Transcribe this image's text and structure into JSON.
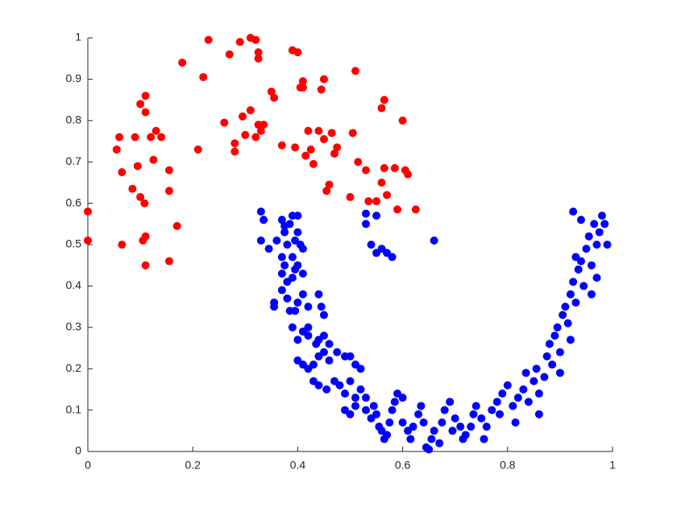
{
  "chart_data": {
    "type": "scatter",
    "xlim": [
      0,
      1
    ],
    "ylim": [
      0,
      1
    ],
    "xticks": [
      0,
      0.2,
      0.4,
      0.6,
      0.8,
      1
    ],
    "yticks": [
      0,
      0.1,
      0.2,
      0.3,
      0.4,
      0.5,
      0.6,
      0.7,
      0.8,
      0.9,
      1
    ],
    "grid": false,
    "series": [
      {
        "color": "#ff0000",
        "x": [
          0,
          0,
          0.06,
          0.055,
          0.09,
          0.065,
          0.065,
          0.085,
          0.095,
          0.1,
          0.11,
          0.11,
          0.1,
          0.108,
          0.11,
          0.105,
          0.11,
          0.12,
          0.13,
          0.125,
          0.14,
          0.155,
          0.155,
          0.17,
          0.155,
          0.18,
          0.21,
          0.22,
          0.23,
          0.26,
          0.27,
          0.28,
          0.28,
          0.29,
          0.295,
          0.3,
          0.31,
          0.31,
          0.32,
          0.32,
          0.325,
          0.325,
          0.325,
          0.33,
          0.335,
          0.35,
          0.355,
          0.37,
          0.39,
          0.395,
          0.4,
          0.405,
          0.41,
          0.41,
          0.415,
          0.42,
          0.425,
          0.43,
          0.44,
          0.445,
          0.45,
          0.45,
          0.455,
          0.46,
          0.465,
          0.47,
          0.475,
          0.5,
          0.505,
          0.51,
          0.515,
          0.53,
          0.535,
          0.55,
          0.56,
          0.565,
          0.56,
          0.565,
          0.57,
          0.59,
          0.6,
          0.605,
          0.61,
          0.625,
          0.585
        ],
        "values": [
          0.58,
          0.51,
          0.76,
          0.73,
          0.76,
          0.675,
          0.5,
          0.635,
          0.69,
          0.84,
          0.86,
          0.82,
          0.615,
          0.6,
          0.52,
          0.51,
          0.45,
          0.76,
          0.775,
          0.705,
          0.76,
          0.68,
          0.63,
          0.545,
          0.46,
          0.94,
          0.73,
          0.905,
          0.995,
          0.795,
          0.96,
          0.745,
          0.725,
          0.99,
          0.81,
          0.765,
          1,
          0.825,
          0.76,
          0.995,
          0.965,
          0.95,
          0.79,
          0.775,
          0.79,
          0.87,
          0.855,
          0.74,
          0.97,
          0.735,
          0.965,
          0.88,
          0.895,
          0.88,
          0.715,
          0.775,
          0.73,
          0.695,
          0.775,
          0.875,
          0.9,
          0.755,
          0.63,
          0.645,
          0.77,
          0.72,
          0.735,
          0.615,
          0.77,
          0.92,
          0.7,
          0.68,
          0.605,
          0.605,
          0.83,
          0.85,
          0.65,
          0.685,
          0.62,
          0.585,
          0.8,
          0.68,
          0.67,
          0.585,
          0.685
        ]
      },
      {
        "color": "#0000ff",
        "x": [
          0.33,
          0.335,
          0.33,
          0.345,
          0.36,
          0.37,
          0.375,
          0.375,
          0.38,
          0.385,
          0.39,
          0.395,
          0.4,
          0.4,
          0.405,
          0.41,
          0.37,
          0.375,
          0.39,
          0.395,
          0.4,
          0.41,
          0.37,
          0.38,
          0.39,
          0.355,
          0.355,
          0.37,
          0.38,
          0.385,
          0.395,
          0.4,
          0.41,
          0.42,
          0.44,
          0.445,
          0.45,
          0.39,
          0.4,
          0.41,
          0.42,
          0.42,
          0.435,
          0.44,
          0.45,
          0.46,
          0.4,
          0.41,
          0.42,
          0.43,
          0.44,
          0.45,
          0.46,
          0.475,
          0.49,
          0.5,
          0.51,
          0.52,
          0.43,
          0.44,
          0.455,
          0.47,
          0.48,
          0.49,
          0.5,
          0.51,
          0.52,
          0.53,
          0.49,
          0.5,
          0.51,
          0.53,
          0.54,
          0.545,
          0.55,
          0.555,
          0.56,
          0.565,
          0.57,
          0.575,
          0.58,
          0.585,
          0.59,
          0.6,
          0.6,
          0.61,
          0.615,
          0.62,
          0.63,
          0.635,
          0.64,
          0.645,
          0.65,
          0.655,
          0.66,
          0.67,
          0.675,
          0.68,
          0.69,
          0.695,
          0.7,
          0.71,
          0.715,
          0.72,
          0.73,
          0.735,
          0.74,
          0.75,
          0.755,
          0.76,
          0.77,
          0.78,
          0.785,
          0.79,
          0.8,
          0.81,
          0.815,
          0.82,
          0.83,
          0.835,
          0.84,
          0.85,
          0.855,
          0.86,
          0.87,
          0.875,
          0.88,
          0.885,
          0.89,
          0.895,
          0.9,
          0.905,
          0.91,
          0.915,
          0.92,
          0.925,
          0.93,
          0.935,
          0.94,
          0.945,
          0.95,
          0.955,
          0.96,
          0.965,
          0.97,
          0.975,
          0.98,
          0.985,
          0.99,
          0.925,
          0.94,
          0.93,
          0.96,
          0.97,
          0.9,
          0.92,
          0.86,
          0.53,
          0.55,
          0.55,
          0.56,
          0.57,
          0.58,
          0.54,
          0.66,
          0.53
        ],
        "values": [
          0.58,
          0.56,
          0.51,
          0.49,
          0.51,
          0.56,
          0.545,
          0.53,
          0.5,
          0.55,
          0.57,
          0.51,
          0.57,
          0.53,
          0.5,
          0.49,
          0.47,
          0.45,
          0.47,
          0.44,
          0.45,
          0.43,
          0.43,
          0.41,
          0.42,
          0.36,
          0.35,
          0.39,
          0.37,
          0.34,
          0.34,
          0.36,
          0.38,
          0.35,
          0.38,
          0.35,
          0.33,
          0.3,
          0.27,
          0.29,
          0.3,
          0.28,
          0.26,
          0.27,
          0.28,
          0.26,
          0.22,
          0.21,
          0.2,
          0.21,
          0.23,
          0.24,
          0.22,
          0.24,
          0.23,
          0.23,
          0.21,
          0.2,
          0.17,
          0.16,
          0.15,
          0.17,
          0.16,
          0.14,
          0.17,
          0.13,
          0.15,
          0.13,
          0.1,
          0.09,
          0.11,
          0.1,
          0.08,
          0.11,
          0.09,
          0.06,
          0.05,
          0.03,
          0.04,
          0.07,
          0.1,
          0.12,
          0.14,
          0.13,
          0.07,
          0.05,
          0.03,
          0.06,
          0.09,
          0.11,
          0.07,
          0.01,
          0.005,
          0.03,
          0.05,
          0.02,
          0.07,
          0.1,
          0.12,
          0.05,
          0.08,
          0.06,
          0.03,
          0.04,
          0.06,
          0.09,
          0.11,
          0.08,
          0.03,
          0.06,
          0.1,
          0.12,
          0.09,
          0.14,
          0.16,
          0.11,
          0.07,
          0.13,
          0.15,
          0.19,
          0.12,
          0.17,
          0.2,
          0.14,
          0.18,
          0.23,
          0.26,
          0.21,
          0.28,
          0.3,
          0.24,
          0.33,
          0.35,
          0.31,
          0.38,
          0.41,
          0.36,
          0.44,
          0.46,
          0.4,
          0.49,
          0.52,
          0.45,
          0.55,
          0.5,
          0.53,
          0.57,
          0.55,
          0.5,
          0.58,
          0.56,
          0.47,
          0.38,
          0.42,
          0.19,
          0.27,
          0.09,
          0.55,
          0.57,
          0.48,
          0.49,
          0.48,
          0.47,
          0.5,
          0.51,
          0.575
        ]
      }
    ]
  }
}
